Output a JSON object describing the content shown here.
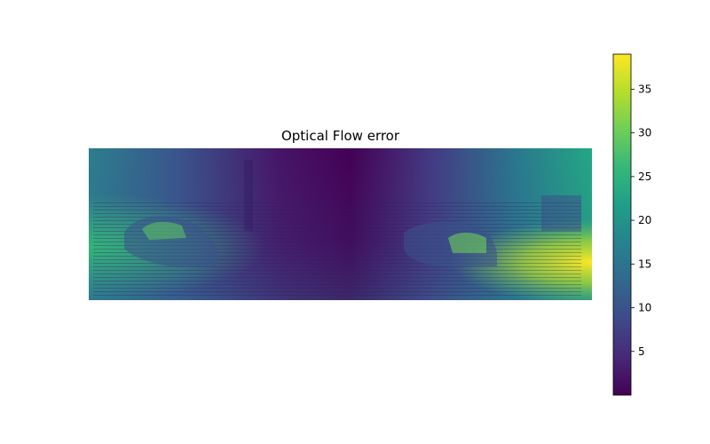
{
  "chart_data": {
    "type": "heatmap",
    "title": "Optical Flow error",
    "xlabel": "",
    "ylabel": "",
    "axes_visible": false,
    "grid": false,
    "colormap": "viridis",
    "colorbar": {
      "range": [
        0,
        39
      ],
      "ticks": [
        5,
        10,
        15,
        20,
        25,
        30,
        35
      ],
      "tick_labels": [
        "5",
        "10",
        "15",
        "20",
        "25",
        "30",
        "35"
      ]
    },
    "colormap_stops": [
      "#440154",
      "#482878",
      "#3e4989",
      "#31688e",
      "#26828e",
      "#1f9e89",
      "#35b779",
      "#6ece58",
      "#b5de2b",
      "#fde725"
    ]
  }
}
